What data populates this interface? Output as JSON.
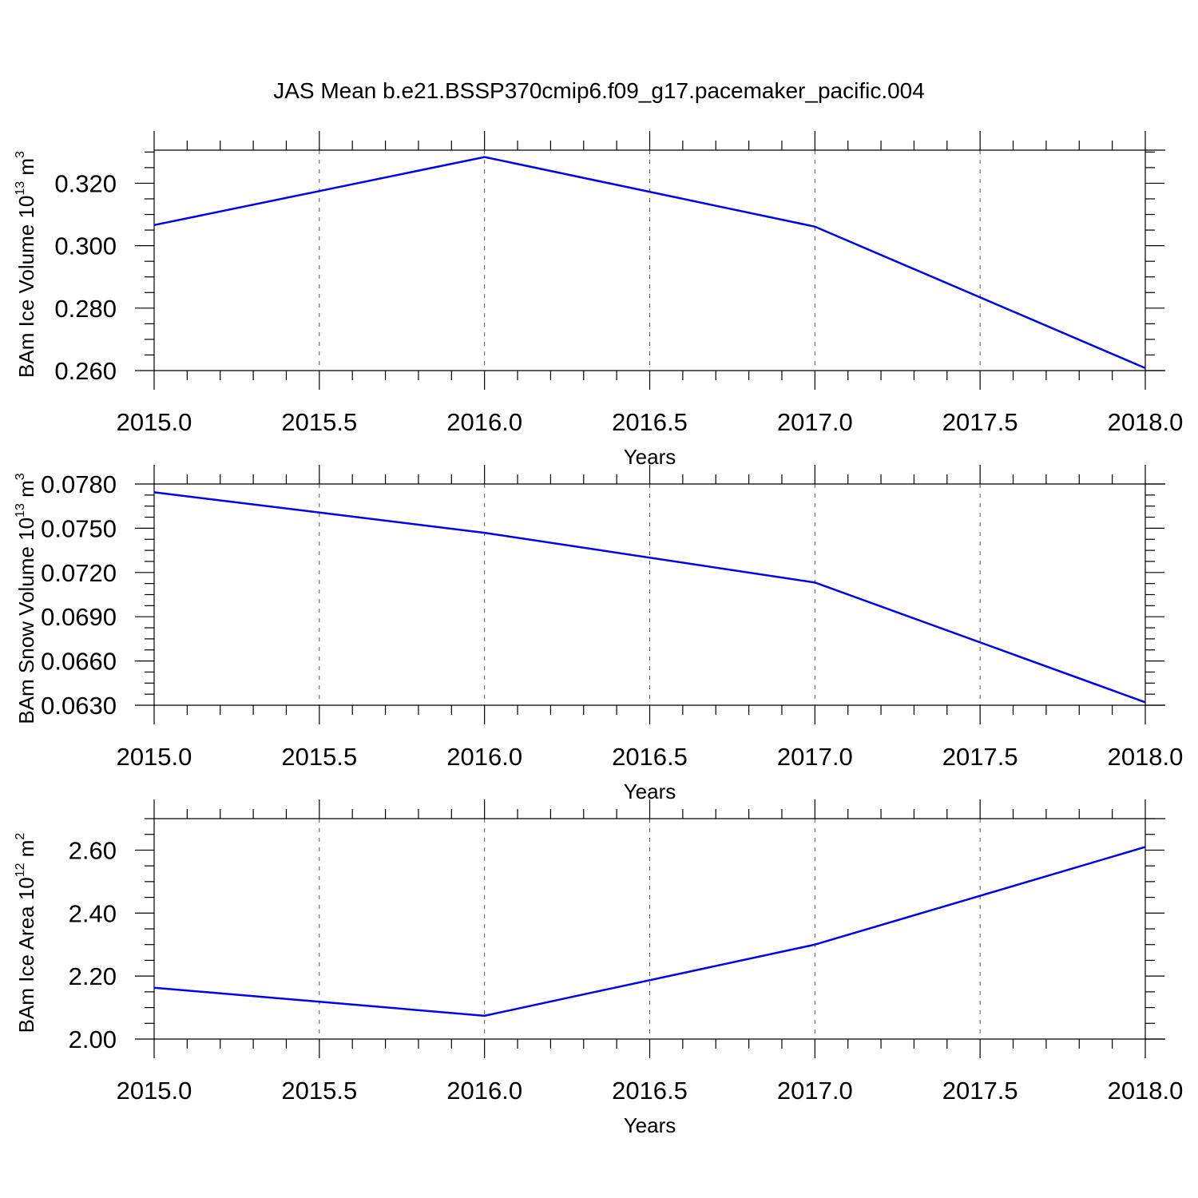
{
  "title": "JAS Mean b.e21.BSSP370cmip6.f09_g17.pacemaker_pacific.004",
  "colors": {
    "line": "#0000ee",
    "axis": "#000000",
    "grid": "#555555"
  },
  "chart_data": [
    {
      "type": "line",
      "ylabel": {
        "main": "BAm Ice Volume 10",
        "sup": "13",
        "unit": " m",
        "unit_sup": "3"
      },
      "xlabel": "Years",
      "xlim": [
        2015.0,
        2018.0
      ],
      "ylim": [
        0.26,
        0.3306
      ],
      "xticks": [
        "2015.0",
        "2015.5",
        "2016.0",
        "2016.5",
        "2017.0",
        "2017.5",
        "2018.0"
      ],
      "yticks": [
        "0.260",
        "0.280",
        "0.300",
        "0.320"
      ],
      "grid": "vertical dashed",
      "series": [
        {
          "x": [
            2015,
            2016,
            2017,
            2018
          ],
          "values": [
            0.3066,
            0.3284,
            0.3061,
            0.2608
          ]
        }
      ]
    },
    {
      "type": "line",
      "ylabel": {
        "main": "BAm Snow Volume 10",
        "sup": "13",
        "unit": " m",
        "unit_sup": "3"
      },
      "xlabel": "Years",
      "xlim": [
        2015.0,
        2018.0
      ],
      "ylim": [
        0.063,
        0.078
      ],
      "xticks": [
        "2015.0",
        "2015.5",
        "2016.0",
        "2016.5",
        "2017.0",
        "2017.5",
        "2018.0"
      ],
      "yticks": [
        "0.0630",
        "0.0660",
        "0.0690",
        "0.0720",
        "0.0750",
        "0.0780"
      ],
      "grid": "vertical dashed",
      "series": [
        {
          "x": [
            2015,
            2016,
            2017,
            2018
          ],
          "values": [
            0.07744,
            0.07469,
            0.07132,
            0.0632
          ]
        }
      ]
    },
    {
      "type": "line",
      "ylabel": {
        "main": "BAm Ice Area 10",
        "sup": "12",
        "unit": " m",
        "unit_sup": "2"
      },
      "xlabel": "Years",
      "xlim": [
        2015.0,
        2018.0
      ],
      "ylim": [
        2.0,
        2.7
      ],
      "xticks": [
        "2015.0",
        "2015.5",
        "2016.0",
        "2016.5",
        "2017.0",
        "2017.5",
        "2018.0"
      ],
      "yticks": [
        "2.00",
        "2.20",
        "2.40",
        "2.60"
      ],
      "grid": "vertical dashed",
      "series": [
        {
          "x": [
            2015,
            2016,
            2017,
            2018
          ],
          "values": [
            2.163,
            2.074,
            2.3,
            2.61
          ]
        }
      ]
    }
  ]
}
